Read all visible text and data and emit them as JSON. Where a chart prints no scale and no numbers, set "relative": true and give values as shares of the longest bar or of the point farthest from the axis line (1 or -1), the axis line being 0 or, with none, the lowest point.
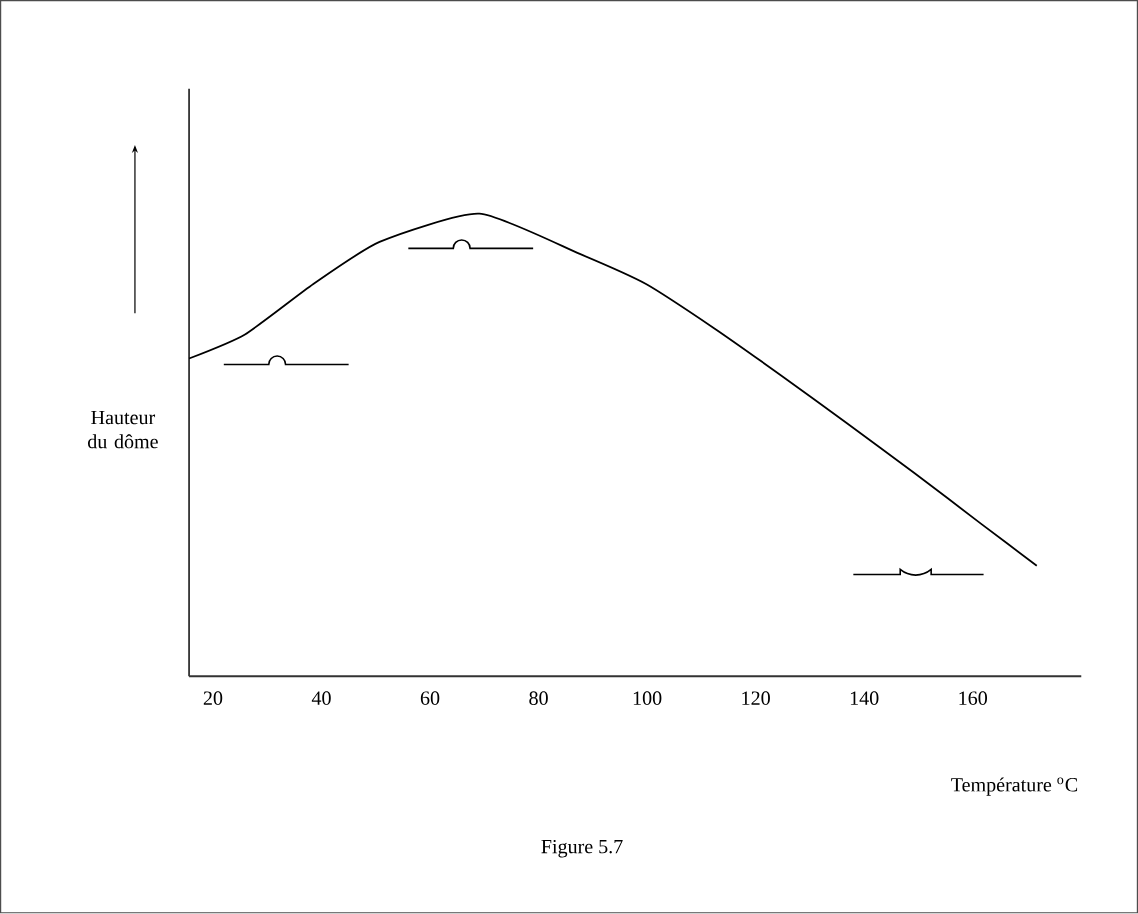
{
  "chart_data": {
    "type": "line",
    "relative": true,
    "xlabel": "Température $^{o}$C",
    "ylabel": "Hauteur du dôme",
    "annotations": [
      "Figure 5.7"
    ],
    "xlim": [
      15.6,
      180
    ],
    "xticks": [
      20,
      40,
      60,
      80,
      100,
      120,
      140,
      160
    ],
    "x": [
      15.6,
      25.9,
      38.5,
      50.7,
      69.1,
      87.6,
      99.8,
      112.4,
      124.5,
      136.7,
      149.3,
      161.5,
      171.8
    ],
    "values": [
      0.687,
      0.739,
      0.848,
      0.939,
      1,
      0.913,
      0.848,
      0.752,
      0.652,
      0.548,
      0.439,
      0.33,
      0.239
    ],
    "color": "#000000"
  }
}
